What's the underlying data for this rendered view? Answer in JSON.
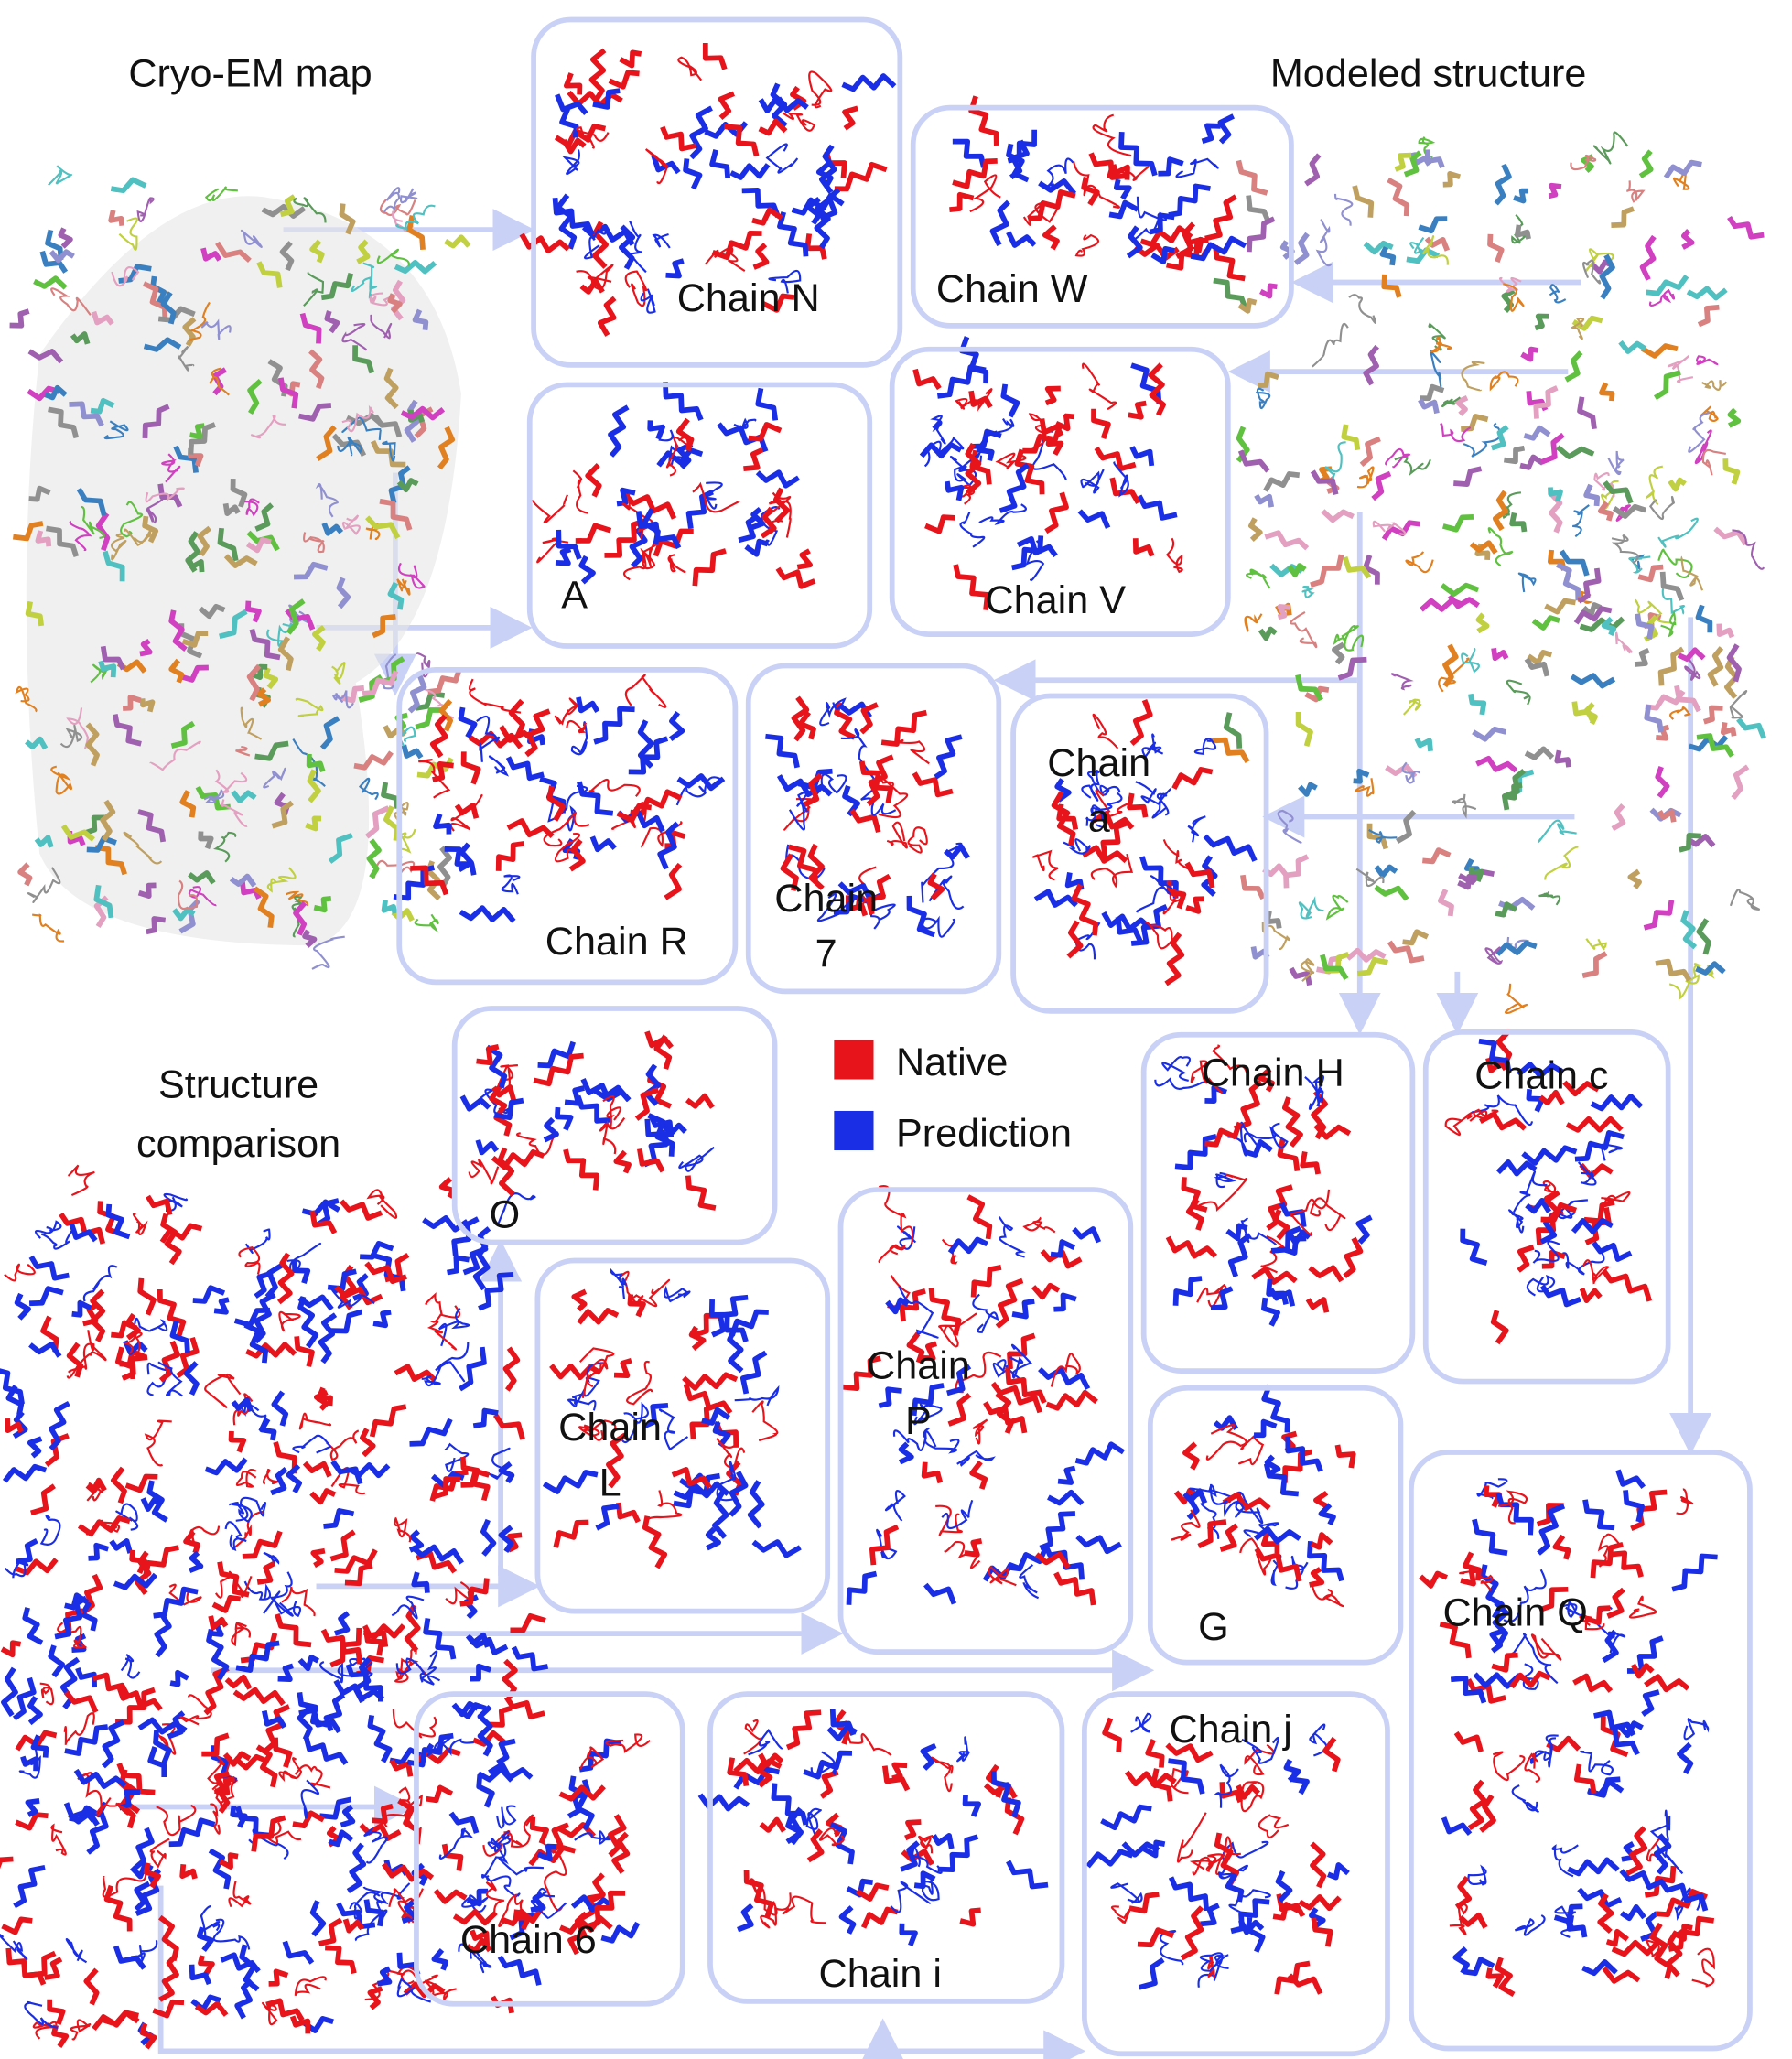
{
  "titles": {
    "cryo_em": "Cryo-EM map",
    "modeled": "Modeled structure",
    "comparison": [
      "Structure",
      "comparison"
    ]
  },
  "legend": [
    {
      "name": "Native",
      "color": "#e8141c"
    },
    {
      "name": "Prediction",
      "color": "#1a2ee6"
    }
  ],
  "panels": [
    {
      "label": [
        "Chain N"
      ]
    },
    {
      "label": [
        "Chain W"
      ]
    },
    {
      "label": [
        "A"
      ]
    },
    {
      "label": [
        "Chain V"
      ]
    },
    {
      "label": [
        "Chain R"
      ]
    },
    {
      "label": [
        "Chain",
        "7"
      ]
    },
    {
      "label": [
        "Chain",
        "a"
      ]
    },
    {
      "label": [
        "O"
      ]
    },
    {
      "label": [
        "Chain",
        "L"
      ]
    },
    {
      "label": [
        "Chain",
        "P"
      ]
    },
    {
      "label": [
        "Chain H"
      ]
    },
    {
      "label": [
        "Chain c"
      ]
    },
    {
      "label": [
        "G"
      ]
    },
    {
      "label": [
        "Chain Q"
      ]
    },
    {
      "label": [
        "Chain 6"
      ]
    },
    {
      "label": [
        "Chain i"
      ]
    },
    {
      "label": [
        "Chain j"
      ]
    }
  ]
}
